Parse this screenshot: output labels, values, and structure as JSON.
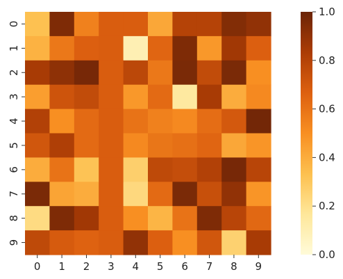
{
  "chart_data": {
    "type": "heatmap",
    "title": "",
    "xlabel": "",
    "ylabel": "",
    "x_ticks": [
      "0",
      "1",
      "2",
      "3",
      "4",
      "5",
      "6",
      "7",
      "8",
      "9"
    ],
    "y_ticks": [
      "0",
      "1",
      "2",
      "3",
      "4",
      "5",
      "6",
      "7",
      "8",
      "9"
    ],
    "colorbar": {
      "vmin": 0.0,
      "vmax": 1.0,
      "ticks": [
        "0.0",
        "0.2",
        "0.4",
        "0.6",
        "0.8",
        "1.0"
      ],
      "tick_values": [
        0.0,
        0.2,
        0.4,
        0.6,
        0.8,
        1.0
      ],
      "placement": "right"
    },
    "colormap": "YlOrBr-like",
    "colormap_stops": [
      "#fffbd9",
      "#fee79a",
      "#fdc04f",
      "#f88f22",
      "#dd6010",
      "#ab3c05",
      "#6b2407"
    ],
    "values": [
      [
        0.33,
        0.95,
        0.55,
        0.68,
        0.68,
        0.42,
        0.8,
        0.8,
        0.94,
        0.9
      ],
      [
        0.38,
        0.58,
        0.67,
        0.68,
        0.1,
        0.65,
        0.95,
        0.47,
        0.86,
        0.67
      ],
      [
        0.84,
        0.91,
        0.97,
        0.68,
        0.78,
        0.58,
        0.96,
        0.76,
        0.96,
        0.5
      ],
      [
        0.45,
        0.72,
        0.76,
        0.68,
        0.47,
        0.63,
        0.15,
        0.84,
        0.4,
        0.52
      ],
      [
        0.81,
        0.5,
        0.63,
        0.68,
        0.6,
        0.55,
        0.52,
        0.62,
        0.7,
        0.98
      ],
      [
        0.71,
        0.82,
        0.63,
        0.68,
        0.52,
        0.59,
        0.61,
        0.65,
        0.42,
        0.48
      ],
      [
        0.4,
        0.6,
        0.32,
        0.68,
        0.27,
        0.77,
        0.75,
        0.81,
        0.97,
        0.79
      ],
      [
        0.96,
        0.43,
        0.4,
        0.68,
        0.23,
        0.63,
        0.96,
        0.74,
        0.9,
        0.48
      ],
      [
        0.22,
        0.95,
        0.86,
        0.68,
        0.5,
        0.37,
        0.6,
        0.95,
        0.79,
        0.64
      ],
      [
        0.77,
        0.69,
        0.66,
        0.68,
        0.9,
        0.67,
        0.5,
        0.71,
        0.26,
        0.84
      ]
    ]
  }
}
